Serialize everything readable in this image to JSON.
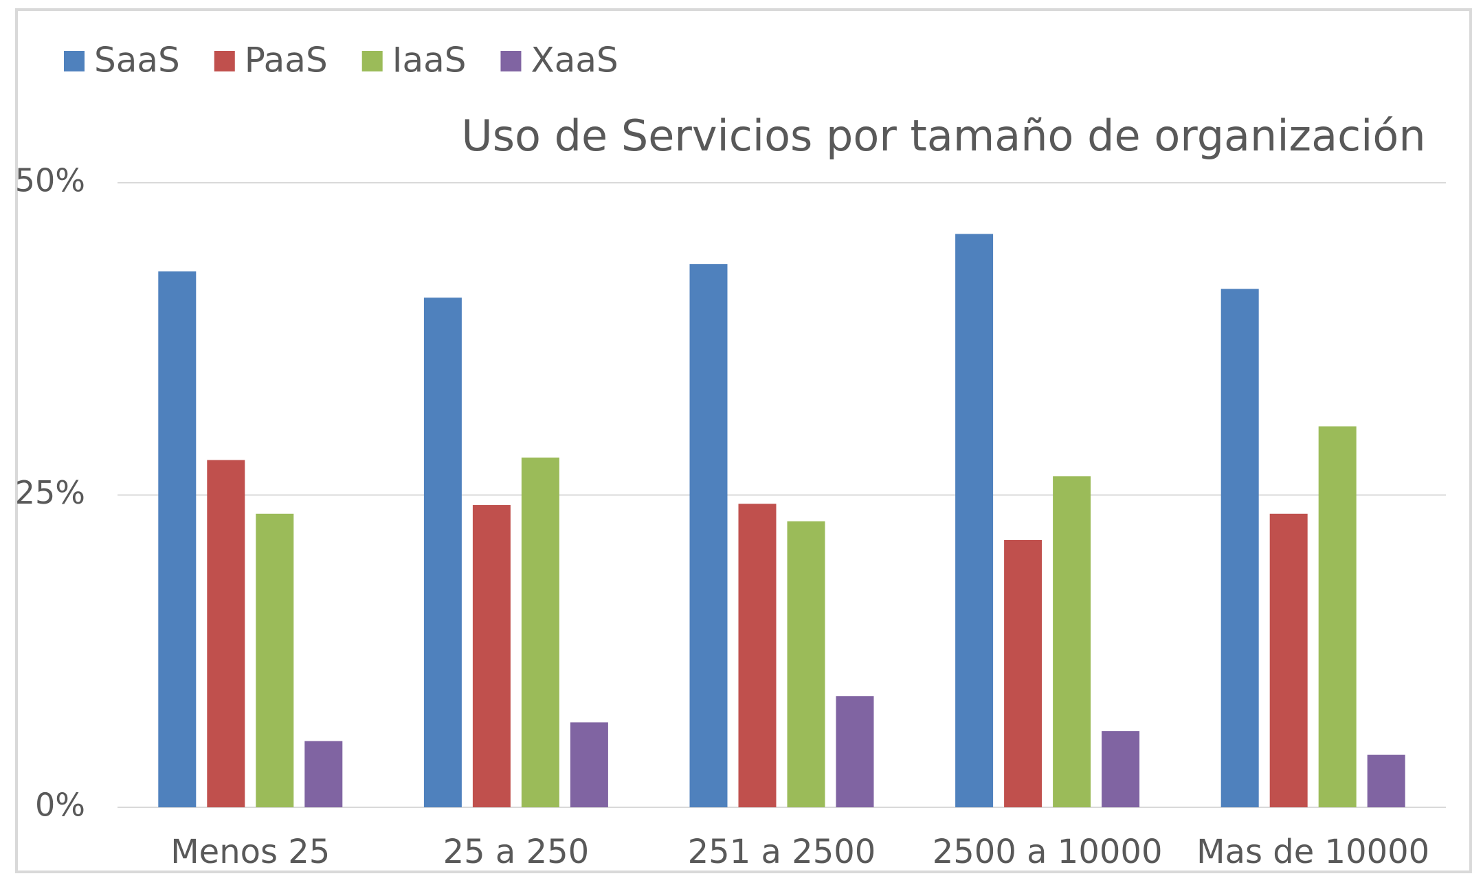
{
  "chart_data": {
    "type": "bar",
    "title": "Uso de Servicios por tamaño de organización",
    "categories": [
      "Menos 25",
      "25 a 250",
      "251 a 2500",
      "2500 a 10000",
      "Mas de 10000"
    ],
    "series": [
      {
        "name": "SaaS",
        "color": "#4f81bd",
        "values": [
          42.9,
          40.8,
          43.5,
          45.9,
          41.5
        ]
      },
      {
        "name": "PaaS",
        "color": "#c0504d",
        "values": [
          27.8,
          24.2,
          24.3,
          21.4,
          23.5
        ]
      },
      {
        "name": "IaaS",
        "color": "#9bbb59",
        "values": [
          23.5,
          28.0,
          22.9,
          26.5,
          30.5
        ]
      },
      {
        "name": "XaaS",
        "color": "#8064a2",
        "values": [
          5.3,
          6.8,
          8.9,
          6.1,
          4.2
        ]
      }
    ],
    "ylim": [
      0,
      50
    ],
    "yticks": [
      {
        "value": 0,
        "label": "0%"
      },
      {
        "value": 25,
        "label": "25%"
      },
      {
        "value": 50,
        "label": "50%"
      }
    ],
    "grid": true,
    "legend": "top-left"
  }
}
